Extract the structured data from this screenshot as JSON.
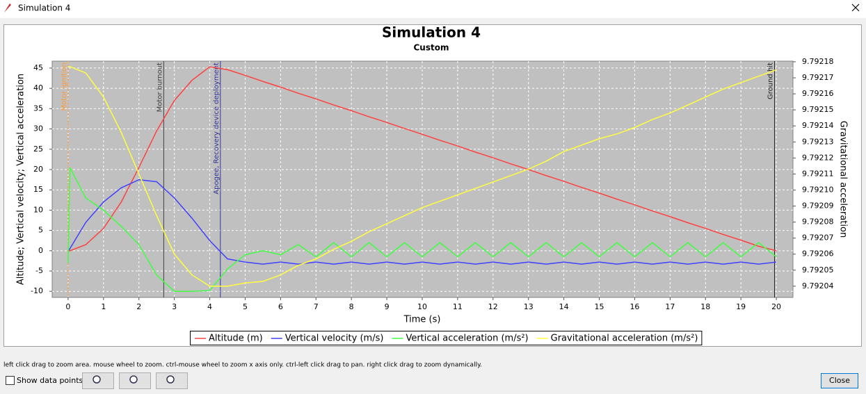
{
  "window_title": "Simulation 4",
  "chart_data": {
    "type": "line",
    "title": "Simulation 4",
    "subtitle": "Custom",
    "x_label": "Time (s)",
    "y_label": "Altitude; Vertical velocity; Vertical acceleration",
    "y2_label": "Gravitational acceleration",
    "x": [
      0,
      0.05,
      0.5,
      1,
      1.5,
      2,
      2.5,
      3,
      3.5,
      4,
      4.5,
      5,
      5.5,
      6,
      6.5,
      7,
      7.5,
      8,
      8.5,
      9,
      9.5,
      10,
      10.5,
      11,
      11.5,
      12,
      12.5,
      13,
      13.5,
      14,
      14.5,
      15,
      15.5,
      16,
      16.5,
      17,
      17.5,
      18,
      18.5,
      19,
      19.5,
      20
    ],
    "series": [
      {
        "name": "Altitude (m)",
        "color": "#ff4040",
        "values": [
          0,
          0,
          1.5,
          5.5,
          12,
          20.5,
          29.5,
          37,
          42,
          45.3,
          44.6,
          43.2,
          41.7,
          40.3,
          38.8,
          37.4,
          35.9,
          34.5,
          33,
          31.6,
          30.1,
          28.7,
          27.2,
          25.8,
          24.3,
          22.9,
          21.4,
          20,
          18.5,
          17.1,
          15.6,
          14.2,
          12.7,
          11.3,
          9.8,
          8.4,
          6.9,
          5.5,
          4,
          2.6,
          1.1,
          0
        ]
      },
      {
        "name": "Vertical velocity (m/s)",
        "color": "#4040ff",
        "values": [
          0,
          0.5,
          7,
          12,
          15.5,
          17.5,
          17,
          13,
          8,
          2.5,
          -2,
          -2.8,
          -3.3,
          -2.8,
          -3.3,
          -2.8,
          -3.3,
          -2.8,
          -3.3,
          -2.8,
          -3.3,
          -2.8,
          -3.3,
          -2.8,
          -3.3,
          -2.8,
          -3.3,
          -2.8,
          -3.3,
          -2.8,
          -3.3,
          -2.8,
          -3.3,
          -2.8,
          -3.3,
          -2.8,
          -3.3,
          -2.8,
          -3.3,
          -2.8,
          -3.3,
          -2.8
        ]
      },
      {
        "name": "Vertical acceleration (m/s²)",
        "color": "#40ff40",
        "values": [
          -3,
          20.5,
          13,
          10,
          6,
          1.5,
          -6,
          -10,
          -10,
          -9.8,
          -4.5,
          -1,
          0,
          -1,
          1.5,
          -1.5,
          2,
          -1.5,
          2,
          -1.5,
          2,
          -1.5,
          2,
          -1.5,
          2,
          -1.5,
          2,
          -1.5,
          2,
          -1.5,
          2,
          -1.5,
          2,
          -1.5,
          2,
          -1.5,
          2,
          -1.5,
          2,
          -1.5,
          2,
          -1.5
        ]
      },
      {
        "name": "Gravitational acceleration (m/s²)",
        "color": "#ffff40",
        "axis": "y2",
        "values": [
          9.792177,
          9.792177,
          9.792173,
          9.792158,
          9.792136,
          9.79211,
          9.792084,
          9.79206,
          9.792047,
          9.79204,
          9.79204,
          9.792042,
          9.792043,
          9.792047,
          9.792053,
          9.792057,
          9.792063,
          9.792068,
          9.792074,
          9.792079,
          9.792084,
          9.792089,
          9.792093,
          9.792097,
          9.792101,
          9.792105,
          9.792109,
          9.792113,
          9.792118,
          9.792124,
          9.792128,
          9.792132,
          9.792135,
          9.792139,
          9.792144,
          9.792148,
          9.792153,
          9.792158,
          9.792163,
          9.792167,
          9.792171,
          9.792175
        ]
      }
    ],
    "events": [
      {
        "x": 0,
        "label": "Motor ignition",
        "color": "#ff9933"
      },
      {
        "x": 2.7,
        "label": "Motor burnout",
        "color": "#404040"
      },
      {
        "x": 4.3,
        "label": "Apogee, Recovery device deployment",
        "color": "#333399"
      },
      {
        "x": 19.95,
        "label": "Ground hit",
        "color": "#202020"
      }
    ],
    "xlim": [
      -0.45,
      20.47
    ],
    "xticks": [
      0,
      1,
      2,
      3,
      4,
      5,
      6,
      7,
      8,
      9,
      10,
      11,
      12,
      13,
      14,
      15,
      16,
      17,
      18,
      19,
      20
    ],
    "ylim": [
      -11.5,
      46.7
    ],
    "yticks": [
      -10,
      -5,
      0,
      5,
      10,
      15,
      20,
      25,
      30,
      35,
      40,
      45
    ],
    "y2lim": [
      9.792033,
      9.7921804
    ],
    "y2ticks": [
      9.79204,
      9.79205,
      9.79206,
      9.79207,
      9.79208,
      9.79209,
      {
        "value": 9.7921,
        "label": "9.79210"
      },
      9.79211,
      9.79212,
      9.79213,
      9.79214,
      9.79215,
      9.79216,
      9.79217,
      9.79218
    ],
    "grid": true
  },
  "hint": "left click drag to zoom area. mouse wheel to zoom. ctrl-mouse wheel to zoom x axis only. ctrl-left click drag to pan.  right click drag to zoom dynamically.",
  "show_data_points": "Show data points",
  "close": "Close"
}
